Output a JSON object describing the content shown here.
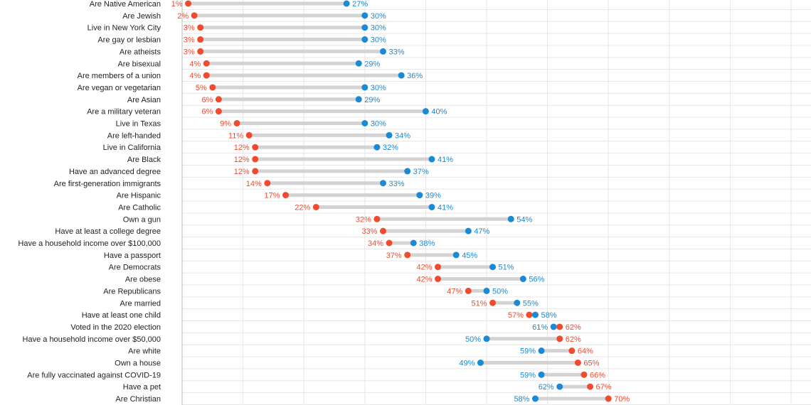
{
  "chart_data": {
    "type": "dumbbell",
    "title": "",
    "xlabel": "",
    "ylabel": "",
    "xlim": [
      0,
      100
    ],
    "grid": true,
    "colors": {
      "series_a": "#f04a2f",
      "series_b": "#1a8ad4",
      "connector": "#d3d3d3",
      "grid": "#e6e6e6",
      "axis": "#b8b8b8"
    },
    "value_suffix": "%",
    "categories": [
      "Are Native American",
      "Are Jewish",
      "Live in New York City",
      "Are gay or lesbian",
      "Are atheists",
      "Are bisexual",
      "Are members of a union",
      "Are vegan or vegetarian",
      "Are Asian",
      "Are a military veteran",
      "Live in Texas",
      "Are left-handed",
      "Live in California",
      "Are Black",
      "Have an advanced degree",
      "Are first-generation immigrants",
      "Are Hispanic",
      "Are Catholic",
      "Own a gun",
      "Have at least a college degree",
      "Have a household income over $100,000",
      "Have a passport",
      "Are Democrats",
      "Are obese",
      "Are Republicans",
      "Are married",
      "Have at least one child",
      "Voted in the 2020 election",
      "Have a household income over $50,000",
      "Are white",
      "Own a house",
      "Are fully vaccinated against COVID-19",
      "Have a pet",
      "Are Christian"
    ],
    "series": [
      {
        "values": [
          1,
          2,
          3,
          3,
          3,
          4,
          4,
          5,
          6,
          6,
          9,
          11,
          12,
          12,
          12,
          14,
          17,
          22,
          32,
          33,
          34,
          37,
          42,
          42,
          47,
          51,
          57,
          62,
          62,
          64,
          65,
          66,
          67,
          70
        ]
      },
      {
        "values": [
          27,
          30,
          30,
          30,
          33,
          29,
          36,
          30,
          29,
          40,
          30,
          34,
          32,
          41,
          37,
          33,
          39,
          41,
          54,
          47,
          38,
          45,
          51,
          56,
          50,
          55,
          58,
          61,
          50,
          59,
          49,
          59,
          62,
          58
        ]
      }
    ]
  }
}
